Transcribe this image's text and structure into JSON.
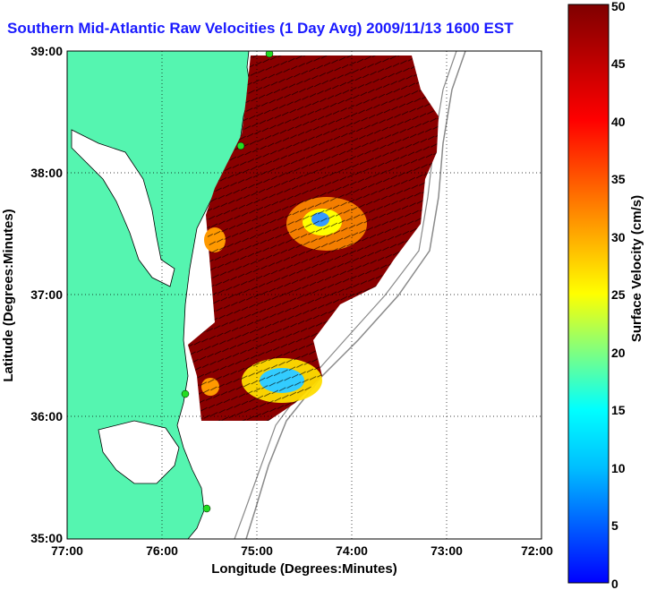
{
  "title": "Southern Mid-Atlantic Raw Velocities (1 Day Avg) 2009/11/13 1600 EST",
  "x_label": "Longitude (Degrees:Minutes)",
  "y_label": "Latitude (Degrees:Minutes)",
  "x_ticks": [
    "77:00",
    "76:00",
    "75:00",
    "74:00",
    "73:00",
    "72:00"
  ],
  "y_ticks": [
    "39:00",
    "38:00",
    "37:00",
    "36:00",
    "35:00"
  ],
  "colorbar": {
    "label": "Surface Velocity (cm/s)",
    "ticks": [
      "50",
      "45",
      "40",
      "35",
      "30",
      "25",
      "20",
      "15",
      "10",
      "5",
      "0"
    ],
    "range": [
      0,
      50
    ],
    "colormap": "jet"
  },
  "colors": {
    "title": "#1a1aff",
    "land": "#55f5b0",
    "water": "#ffffff",
    "coastline": "#000000",
    "station": "#22dd22",
    "bathymetry": "#8a8a8a"
  },
  "chart_data": {
    "type": "heatmap",
    "title": "Southern Mid-Atlantic Raw Velocities (1 Day Avg) 2009/11/13 1600 EST",
    "xlabel": "Longitude (Degrees:Minutes)",
    "ylabel": "Latitude (Degrees:Minutes)",
    "xlim": [
      -77,
      -72
    ],
    "ylim": [
      35,
      39
    ],
    "grid": true,
    "value_range": [
      0,
      50
    ],
    "units": "cm/s",
    "stations": [
      {
        "lon": -74.9,
        "lat": 39.0
      },
      {
        "lon": -75.15,
        "lat": 38.22
      },
      {
        "lon": -75.75,
        "lat": 36.17
      },
      {
        "lon": -75.47,
        "lat": 35.25
      }
    ],
    "slow_regions": [
      {
        "lon": -74.3,
        "lat": 37.6,
        "speed": 12
      },
      {
        "lon": -74.6,
        "lat": 36.2,
        "speed": 12
      }
    ]
  }
}
